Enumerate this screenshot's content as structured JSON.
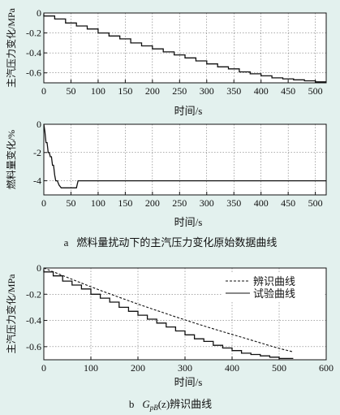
{
  "figure": {
    "caption_a_letter": "a",
    "caption_a_text": "燃料量扰动下的主汽压力变化原始数据曲线",
    "caption_b_letter": "b",
    "caption_b_symbol": "G",
    "caption_b_subscript": "pB",
    "caption_b_arg": "(z)",
    "caption_b_text": "辨识曲线"
  },
  "chart_data": [
    {
      "type": "line",
      "title": "",
      "xlabel": "时间/s",
      "ylabel": "主汽压力变化/MPa",
      "xlim": [
        0,
        520
      ],
      "ylim": [
        -0.7,
        0
      ],
      "xticks": [
        0,
        50,
        100,
        150,
        200,
        250,
        300,
        350,
        400,
        450,
        500
      ],
      "yticks": [
        0,
        -0.2,
        -0.4,
        -0.6
      ],
      "ytick_labels": [
        "0",
        "-0.2",
        "-0.4",
        "-0.6"
      ],
      "grid": true,
      "legend": "none",
      "series": [
        {
          "style": "stepped-solid",
          "x": [
            0,
            20,
            40,
            60,
            80,
            100,
            120,
            140,
            160,
            180,
            200,
            220,
            240,
            260,
            280,
            300,
            320,
            340,
            360,
            380,
            400,
            420,
            440,
            460,
            480,
            500,
            520
          ],
          "y": [
            -0.01,
            -0.03,
            -0.06,
            -0.1,
            -0.13,
            -0.16,
            -0.2,
            -0.23,
            -0.26,
            -0.3,
            -0.33,
            -0.36,
            -0.39,
            -0.42,
            -0.45,
            -0.48,
            -0.51,
            -0.54,
            -0.56,
            -0.59,
            -0.61,
            -0.63,
            -0.65,
            -0.66,
            -0.67,
            -0.68,
            -0.69
          ]
        }
      ]
    },
    {
      "type": "line",
      "title": "",
      "xlabel": "时间/s",
      "ylabel": "燃料量变化/%",
      "xlim": [
        0,
        520
      ],
      "ylim": [
        -5,
        0
      ],
      "xticks": [
        0,
        50,
        100,
        150,
        200,
        250,
        300,
        350,
        400,
        450,
        500
      ],
      "yticks": [
        0,
        -2,
        -4
      ],
      "ytick_labels": [
        "0",
        "-2",
        "-4"
      ],
      "grid": true,
      "legend": "none",
      "series": [
        {
          "style": "solid",
          "x": [
            0,
            2,
            4,
            6,
            8,
            10,
            12,
            14,
            16,
            18,
            20,
            22,
            25,
            28,
            32,
            40,
            50,
            60,
            63,
            66,
            70,
            100,
            200,
            300,
            400,
            520
          ],
          "y": [
            0,
            -0.5,
            -1.3,
            -1.3,
            -2.0,
            -2.0,
            -2.3,
            -2.3,
            -2.9,
            -2.9,
            -3.6,
            -4.0,
            -4.0,
            -4.3,
            -4.5,
            -4.5,
            -4.5,
            -4.5,
            -4.0,
            -4.0,
            -4.0,
            -4.0,
            -4.0,
            -4.0,
            -4.0,
            -4.0
          ]
        }
      ]
    },
    {
      "type": "line",
      "title": "",
      "xlabel": "时间/s",
      "ylabel": "主汽压力变化/MPa",
      "xlim": [
        0,
        600
      ],
      "ylim": [
        -0.7,
        0
      ],
      "xticks": [
        0,
        100,
        200,
        300,
        400,
        500,
        600
      ],
      "yticks": [
        0,
        -0.2,
        -0.4,
        -0.6
      ],
      "ytick_labels": [
        "0",
        "-0.2",
        "-0.4",
        "-0.6"
      ],
      "grid": true,
      "legend": "top-right",
      "series": [
        {
          "name": "辨识曲线",
          "style": "dashed",
          "x": [
            0,
            25,
            50,
            75,
            100,
            125,
            150,
            175,
            200,
            225,
            250,
            275,
            300,
            325,
            350,
            375,
            400,
            425,
            450,
            475,
            500,
            530
          ],
          "y": [
            0,
            -0.036,
            -0.072,
            -0.108,
            -0.143,
            -0.177,
            -0.21,
            -0.243,
            -0.275,
            -0.306,
            -0.336,
            -0.367,
            -0.396,
            -0.425,
            -0.453,
            -0.48,
            -0.507,
            -0.533,
            -0.56,
            -0.587,
            -0.613,
            -0.64
          ]
        },
        {
          "name": "试验曲线",
          "style": "stepped-solid",
          "x": [
            0,
            20,
            40,
            60,
            80,
            100,
            120,
            140,
            160,
            180,
            200,
            220,
            240,
            260,
            280,
            300,
            320,
            340,
            360,
            380,
            400,
            420,
            440,
            460,
            480,
            500,
            530
          ],
          "y": [
            -0.01,
            -0.03,
            -0.06,
            -0.1,
            -0.13,
            -0.16,
            -0.2,
            -0.23,
            -0.26,
            -0.3,
            -0.33,
            -0.36,
            -0.39,
            -0.42,
            -0.45,
            -0.48,
            -0.51,
            -0.54,
            -0.56,
            -0.59,
            -0.61,
            -0.63,
            -0.65,
            -0.66,
            -0.67,
            -0.68,
            -0.69
          ]
        }
      ]
    }
  ]
}
